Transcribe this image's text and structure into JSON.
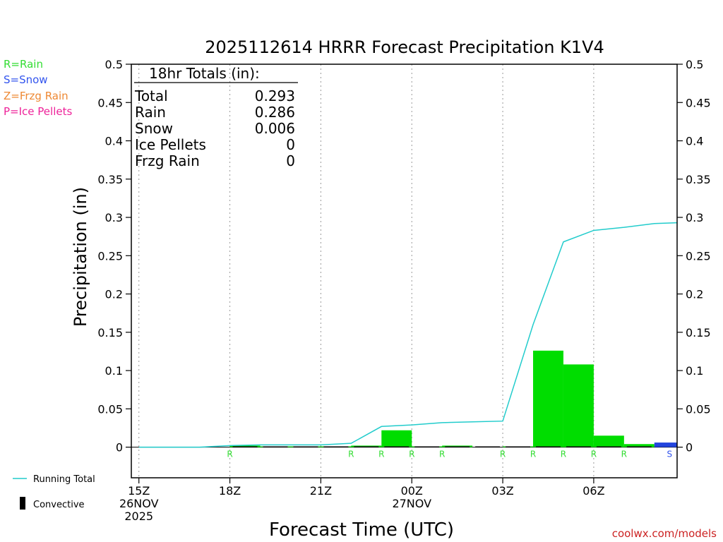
{
  "title": "2025112614 HRRR Forecast Precipitation K1V4",
  "xlabel": "Forecast Time (UTC)",
  "ylabel": "Precipitation (in)",
  "credit": "coolwx.com/models",
  "legend_types": [
    {
      "text": "R=Rain",
      "color": "#33dd33"
    },
    {
      "text": "S=Snow",
      "color": "#3355ee"
    },
    {
      "text": "Z=Frzg Rain",
      "color": "#ee8833"
    },
    {
      "text": "P=Ice Pellets",
      "color": "#ee2299"
    }
  ],
  "legend_bottom": {
    "running_total": "Running Total",
    "convective": "Convective"
  },
  "totals_box": {
    "title": "18hr Totals (in):",
    "rows": [
      {
        "label": "Total",
        "value": "0.293"
      },
      {
        "label": "Rain",
        "value": "0.286"
      },
      {
        "label": "Snow",
        "value": "0.006"
      },
      {
        "label": "Ice Pellets",
        "value": "0"
      },
      {
        "label": "Frzg Rain",
        "value": "0"
      }
    ]
  },
  "chart_data": {
    "type": "bar",
    "title": "2025112614 HRRR Forecast Precipitation K1V4",
    "xlabel": "Forecast Time (UTC)",
    "ylabel": "Precipitation (in)",
    "ylim": [
      -0.04,
      0.5
    ],
    "xlim": [
      -0.25,
      17.75
    ],
    "yticks": [
      "0",
      "0.05",
      "0.1",
      "0.15",
      "0.2",
      "0.25",
      "0.3",
      "0.35",
      "0.4",
      "0.45",
      "0.5"
    ],
    "xticks": [
      {
        "hour": 0,
        "lines": [
          "15Z",
          "26NOV",
          "2025"
        ]
      },
      {
        "hour": 3,
        "lines": [
          "18Z"
        ]
      },
      {
        "hour": 6,
        "lines": [
          "21Z"
        ]
      },
      {
        "hour": 9,
        "lines": [
          "00Z",
          "27NOV"
        ]
      },
      {
        "hour": 12,
        "lines": [
          "03Z"
        ]
      },
      {
        "hour": 15,
        "lines": [
          "06Z"
        ]
      }
    ],
    "grid": "vertical dotted at each tick",
    "colors": {
      "rain": "#00dd00",
      "snow": "#2244dd",
      "running_total": "#22cccc",
      "convective": "#000000"
    },
    "series": [
      {
        "name": "Rain",
        "type": "rain",
        "x": [
          3,
          4,
          5,
          6,
          7,
          8,
          9,
          10,
          11,
          12,
          13,
          14,
          15,
          16,
          17
        ],
        "values": [
          0.002,
          0.001,
          0.001,
          0.001,
          0.002,
          0.022,
          0.001,
          0.002,
          0.0,
          0.001,
          0.126,
          0.108,
          0.015,
          0.004,
          0.0
        ]
      },
      {
        "name": "Snow",
        "type": "snow",
        "x": [
          17
        ],
        "values": [
          0.006
        ]
      },
      {
        "name": "Convective",
        "type": "convective",
        "x": [
          3,
          4,
          5,
          6,
          7,
          8,
          9,
          10,
          11,
          12,
          13,
          14,
          15,
          16
        ],
        "values": [
          0.001,
          0.001,
          0.001,
          0.001,
          0.001,
          0.001,
          0.001,
          0.001,
          0.001,
          0.001,
          0.001,
          0.001,
          0.001,
          0.001
        ]
      },
      {
        "name": "Running Total",
        "type": "line",
        "x": [
          0,
          1,
          2,
          3,
          4,
          5,
          6,
          7,
          8,
          9,
          10,
          11,
          12,
          13,
          14,
          15,
          16,
          17,
          17.75
        ],
        "values": [
          0.0,
          0.0,
          0.0,
          0.002,
          0.003,
          0.003,
          0.003,
          0.005,
          0.027,
          0.029,
          0.032,
          0.033,
          0.034,
          0.16,
          0.268,
          0.283,
          0.287,
          0.292,
          0.293
        ]
      }
    ],
    "type_labels": [
      {
        "hour": 3,
        "text": "R",
        "type": "rain"
      },
      {
        "hour": 7,
        "text": "R",
        "type": "rain"
      },
      {
        "hour": 8,
        "text": "R",
        "type": "rain"
      },
      {
        "hour": 9,
        "text": "R",
        "type": "rain"
      },
      {
        "hour": 10,
        "text": "R",
        "type": "rain"
      },
      {
        "hour": 12,
        "text": "R",
        "type": "rain"
      },
      {
        "hour": 13,
        "text": "R",
        "type": "rain"
      },
      {
        "hour": 14,
        "text": "R",
        "type": "rain"
      },
      {
        "hour": 15,
        "text": "R",
        "type": "rain"
      },
      {
        "hour": 16,
        "text": "R",
        "type": "rain"
      },
      {
        "hour": 17.5,
        "text": "S",
        "type": "snow"
      }
    ]
  }
}
